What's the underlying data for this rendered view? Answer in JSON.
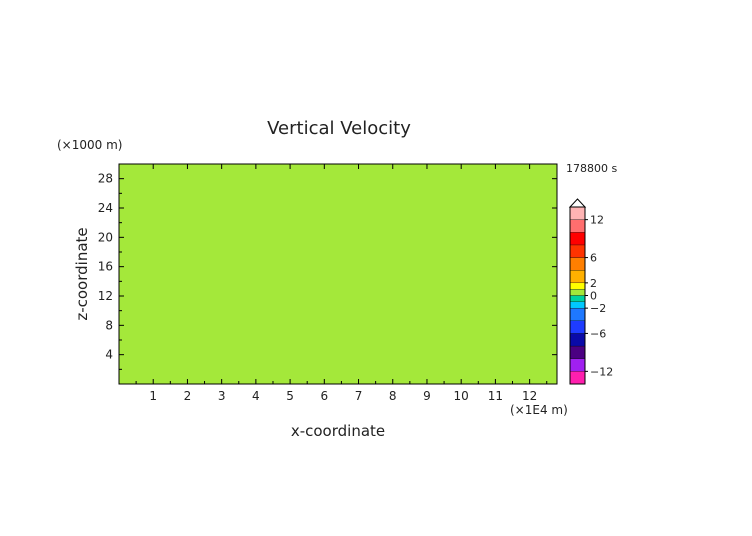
{
  "chart_data": {
    "type": "heatmap",
    "title": "Vertical Velocity",
    "xlabel": "x-coordinate",
    "ylabel": "z-coordinate",
    "x_unit": "(×1E4 m)",
    "y_unit": "(×1000 m)",
    "time_label": "178800 s",
    "x_ticks": [
      "1",
      "2",
      "3",
      "4",
      "5",
      "6",
      "7",
      "8",
      "9",
      "10",
      "11",
      "12"
    ],
    "y_ticks": [
      "4",
      "8",
      "12",
      "16",
      "20",
      "24",
      "28"
    ],
    "xlim": [
      0,
      12.8
    ],
    "ylim": [
      0,
      30
    ],
    "grid": false,
    "colorbar": {
      "placement": "right",
      "ticks": [
        "12",
        "6",
        "2",
        "0",
        "−2",
        "−6",
        "−12"
      ],
      "levels": [
        -14,
        -12,
        -10,
        -8,
        -6,
        -4,
        -2,
        -1,
        0,
        1,
        2,
        4,
        6,
        8,
        10,
        12,
        14
      ],
      "colors": [
        "#ff1fae",
        "#a020f0",
        "#4b0082",
        "#0a0aa8",
        "#1e3cff",
        "#1e78ff",
        "#00c8ff",
        "#00d2a0",
        "#a4e83a",
        "#ffff00",
        "#ffb000",
        "#ff7f00",
        "#ff3300",
        "#ff0000",
        "#ff6e6e",
        "#ffb4b4"
      ]
    },
    "dominant_colors": {
      "positive_weak": "#ffff00",
      "near_zero": "#a4e83a"
    }
  }
}
